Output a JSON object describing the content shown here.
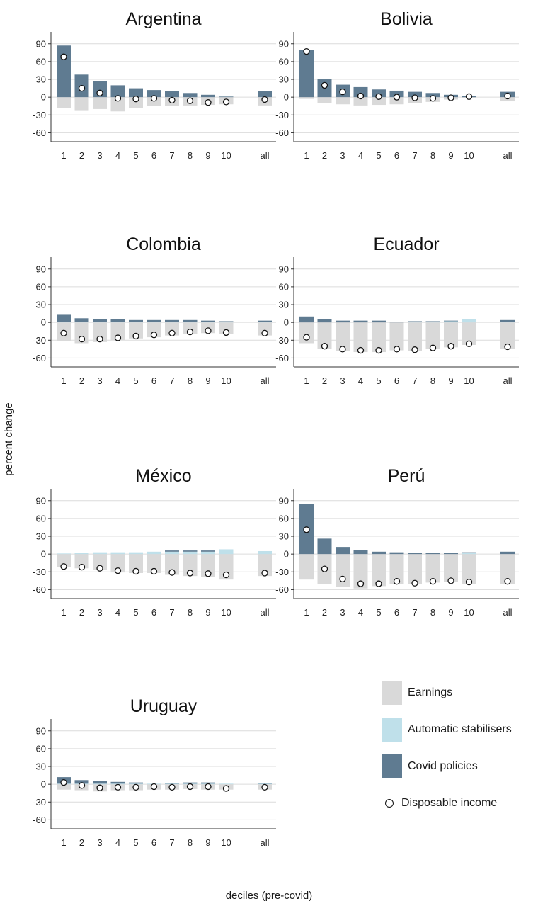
{
  "axis_labels": {
    "y": "percent change",
    "x": "deciles (pre-covid)"
  },
  "legend": [
    {
      "label": "Earnings",
      "color": "#d9d9d9",
      "kind": "box"
    },
    {
      "label": "Automatic stabilisers",
      "color": "#bfe0ea",
      "kind": "box"
    },
    {
      "label": "Covid policies",
      "color": "#5f7b91",
      "kind": "box"
    },
    {
      "label": "Disposable income",
      "color": "#ffffff",
      "kind": "dot"
    }
  ],
  "chart_data": [
    {
      "type": "bar",
      "title": "Argentina",
      "categories": [
        "1",
        "2",
        "3",
        "4",
        "5",
        "6",
        "7",
        "8",
        "9",
        "10",
        "all"
      ],
      "yticks": [
        "90",
        "60",
        "30",
        "0",
        "-30",
        "-60"
      ],
      "ylim": [
        -75,
        110
      ],
      "series": [
        {
          "name": "Earnings",
          "values": [
            -18,
            -22,
            -20,
            -24,
            -18,
            -15,
            -15,
            -14,
            -13,
            -12,
            -14
          ]
        },
        {
          "name": "Automatic stabilisers",
          "values": [
            0,
            0,
            0,
            0,
            0,
            0,
            0,
            0,
            0,
            0,
            0
          ]
        },
        {
          "name": "Covid policies",
          "values": [
            87,
            38,
            27,
            20,
            15,
            12,
            10,
            7,
            4,
            1,
            10
          ]
        },
        {
          "name": "Disposable income",
          "values": [
            68,
            15,
            7,
            -2,
            -3,
            -2,
            -5,
            -6,
            -9,
            -8,
            -4
          ]
        }
      ]
    },
    {
      "type": "bar",
      "title": "Bolivia",
      "categories": [
        "1",
        "2",
        "3",
        "4",
        "5",
        "6",
        "7",
        "8",
        "9",
        "10",
        "all"
      ],
      "yticks": [
        "90",
        "60",
        "30",
        "0",
        "-30",
        "-60"
      ],
      "ylim": [
        -75,
        110
      ],
      "series": [
        {
          "name": "Earnings",
          "values": [
            -3,
            -10,
            -12,
            -14,
            -13,
            -12,
            -10,
            -8,
            -4,
            -1,
            -7
          ]
        },
        {
          "name": "Automatic stabilisers",
          "values": [
            0,
            0,
            0,
            0,
            0,
            0,
            0,
            0,
            0,
            0,
            0
          ]
        },
        {
          "name": "Covid policies",
          "values": [
            80,
            30,
            21,
            17,
            13,
            11,
            9,
            7,
            4,
            2,
            9
          ]
        },
        {
          "name": "Disposable income",
          "values": [
            77,
            20,
            9,
            2,
            1,
            0,
            -1,
            -2,
            -1,
            1,
            2
          ]
        }
      ]
    },
    {
      "type": "bar",
      "title": "Colombia",
      "categories": [
        "1",
        "2",
        "3",
        "4",
        "5",
        "6",
        "7",
        "8",
        "9",
        "10",
        "all"
      ],
      "yticks": [
        "90",
        "60",
        "30",
        "0",
        "-30",
        "-60"
      ],
      "ylim": [
        -75,
        110
      ],
      "series": [
        {
          "name": "Earnings",
          "values": [
            -32,
            -35,
            -33,
            -30,
            -27,
            -25,
            -22,
            -20,
            -18,
            -20,
            -22
          ]
        },
        {
          "name": "Automatic stabilisers",
          "values": [
            1,
            1,
            1,
            1,
            1,
            1,
            1,
            1,
            1,
            1,
            1
          ]
        },
        {
          "name": "Covid policies",
          "values": [
            13,
            6,
            4,
            4,
            3,
            3,
            3,
            3,
            2,
            1,
            2
          ]
        },
        {
          "name": "Disposable income",
          "values": [
            -18,
            -28,
            -28,
            -26,
            -23,
            -21,
            -18,
            -16,
            -14,
            -17,
            -18
          ]
        }
      ]
    },
    {
      "type": "bar",
      "title": "Ecuador",
      "categories": [
        "1",
        "2",
        "3",
        "4",
        "5",
        "6",
        "7",
        "8",
        "9",
        "10",
        "all"
      ],
      "yticks": [
        "90",
        "60",
        "30",
        "0",
        "-30",
        "-60"
      ],
      "ylim": [
        -75,
        110
      ],
      "series": [
        {
          "name": "Earnings",
          "values": [
            -35,
            -44,
            -48,
            -50,
            -50,
            -47,
            -48,
            -45,
            -42,
            -38,
            -44
          ]
        },
        {
          "name": "Automatic stabilisers",
          "values": [
            0,
            0,
            0,
            0,
            0,
            0,
            1,
            1,
            2,
            6,
            1
          ]
        },
        {
          "name": "Covid policies",
          "values": [
            10,
            5,
            3,
            3,
            3,
            1,
            1,
            1,
            1,
            0,
            3
          ]
        },
        {
          "name": "Disposable income",
          "values": [
            -25,
            -40,
            -45,
            -47,
            -47,
            -45,
            -46,
            -43,
            -40,
            -36,
            -41
          ]
        }
      ]
    },
    {
      "type": "bar",
      "title": "México",
      "categories": [
        "1",
        "2",
        "3",
        "4",
        "5",
        "6",
        "7",
        "8",
        "9",
        "10",
        "all"
      ],
      "yticks": [
        "90",
        "60",
        "30",
        "0",
        "-30",
        "-60"
      ],
      "ylim": [
        -75,
        110
      ],
      "series": [
        {
          "name": "Earnings",
          "values": [
            -22,
            -24,
            -27,
            -31,
            -32,
            -32,
            -35,
            -37,
            -38,
            -43,
            -37
          ]
        },
        {
          "name": "Automatic stabilisers",
          "values": [
            1,
            2,
            3,
            3,
            3,
            4,
            4,
            4,
            4,
            8,
            5
          ]
        },
        {
          "name": "Covid policies",
          "values": [
            0,
            0,
            0,
            0,
            0,
            0,
            2,
            2,
            2,
            0,
            0
          ]
        },
        {
          "name": "Disposable income",
          "values": [
            -21,
            -22,
            -24,
            -28,
            -29,
            -29,
            -31,
            -32,
            -33,
            -35,
            -32
          ]
        }
      ]
    },
    {
      "type": "bar",
      "title": "Perú",
      "categories": [
        "1",
        "2",
        "3",
        "4",
        "5",
        "6",
        "7",
        "8",
        "9",
        "10",
        "all"
      ],
      "yticks": [
        "90",
        "60",
        "30",
        "0",
        "-30",
        "-60"
      ],
      "ylim": [
        -75,
        110
      ],
      "series": [
        {
          "name": "Earnings",
          "values": [
            -43,
            -50,
            -55,
            -58,
            -54,
            -51,
            -51,
            -48,
            -47,
            -50,
            -50
          ]
        },
        {
          "name": "Automatic stabilisers",
          "values": [
            0,
            0,
            0,
            0,
            0,
            0,
            0,
            0,
            0,
            2,
            0
          ]
        },
        {
          "name": "Covid policies",
          "values": [
            84,
            26,
            12,
            7,
            4,
            3,
            2,
            2,
            2,
            1,
            4
          ]
        },
        {
          "name": "Disposable income",
          "values": [
            41,
            -25,
            -42,
            -50,
            -50,
            -46,
            -49,
            -46,
            -45,
            -47,
            -46
          ]
        }
      ]
    },
    {
      "type": "bar",
      "title": "Uruguay",
      "categories": [
        "1",
        "2",
        "3",
        "4",
        "5",
        "6",
        "7",
        "8",
        "9",
        "10",
        "all"
      ],
      "yticks": [
        "90",
        "60",
        "30",
        "0",
        "-30",
        "-60"
      ],
      "ylim": [
        -75,
        110
      ],
      "series": [
        {
          "name": "Earnings",
          "values": [
            -9,
            -10,
            -12,
            -10,
            -10,
            -9,
            -9,
            -8,
            -9,
            -9,
            -9
          ]
        },
        {
          "name": "Automatic stabilisers",
          "values": [
            1,
            1,
            1,
            1,
            1,
            1,
            1,
            1,
            1,
            1,
            1
          ]
        },
        {
          "name": "Covid policies",
          "values": [
            11,
            6,
            4,
            3,
            2,
            0,
            1,
            2,
            2,
            0,
            1
          ]
        },
        {
          "name": "Disposable income",
          "values": [
            3,
            -2,
            -6,
            -5,
            -5,
            -4,
            -5,
            -4,
            -4,
            -7,
            -5
          ]
        }
      ]
    }
  ]
}
